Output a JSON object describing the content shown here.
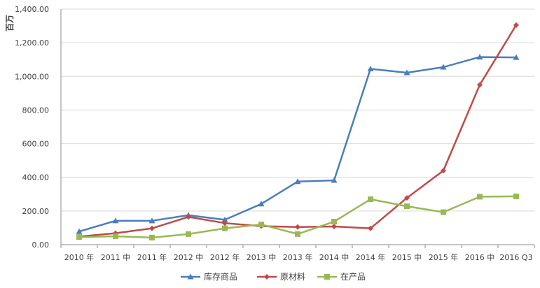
{
  "chart_data": {
    "type": "line",
    "ylabel": "百万",
    "ylim": [
      0,
      1400
    ],
    "yticks": [
      "0.00",
      "200.00",
      "400.00",
      "600.00",
      "800.00",
      "1,000.00",
      "1,200.00",
      "1,400.00"
    ],
    "ytick_values": [
      0,
      200,
      400,
      600,
      800,
      1000,
      1200,
      1400
    ],
    "categories": [
      "2010 年",
      "2011 中",
      "2011 年",
      "2012 中",
      "2012 年",
      "2013 中",
      "2013 年",
      "2014 中",
      "2014 年",
      "2015 中",
      "2015 年",
      "2016 中",
      "2016 Q3"
    ],
    "grid": true,
    "legend_position": "bottom",
    "series": [
      {
        "name": "库存商品",
        "color": "#4a7ebb",
        "marker": "triangle",
        "values": [
          78,
          142,
          142,
          175,
          148,
          242,
          375,
          382,
          1045,
          1022,
          1055,
          1115,
          1113
        ]
      },
      {
        "name": "原材料",
        "color": "#be4b48",
        "marker": "diamond",
        "values": [
          48,
          68,
          97,
          165,
          128,
          110,
          105,
          108,
          97,
          278,
          440,
          950,
          1305
        ]
      },
      {
        "name": "在产品",
        "color": "#98b954",
        "marker": "square",
        "values": [
          45,
          50,
          42,
          63,
          97,
          120,
          63,
          137,
          270,
          228,
          193,
          285,
          287
        ]
      }
    ]
  }
}
